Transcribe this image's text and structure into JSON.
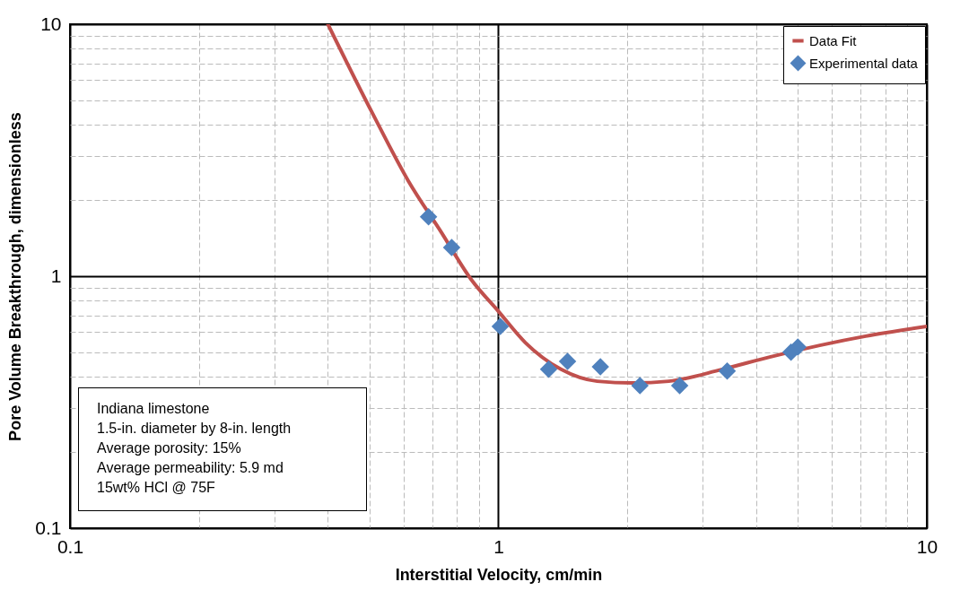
{
  "chart_data": {
    "type": "line",
    "xlabel": "Interstitial Velocity, cm/min",
    "ylabel": "Pore Volume Breakthrough, dimensionless",
    "log": "xy",
    "grid": true,
    "legend": "top right",
    "xlim": [
      0.1,
      10
    ],
    "ylim": [
      0.1,
      10
    ],
    "xticks": [
      0.1,
      {
        "value": 0.2,
        "label": null
      },
      {
        "value": 0.3,
        "label": null
      },
      {
        "value": 0.4,
        "label": null
      },
      {
        "value": 0.5,
        "label": null
      },
      {
        "value": 0.6,
        "label": null
      },
      {
        "value": 0.7,
        "label": null
      },
      {
        "value": 0.8,
        "label": null
      },
      {
        "value": 0.9,
        "label": null
      },
      1,
      {
        "value": 2,
        "label": null
      },
      {
        "value": 3,
        "label": null
      },
      {
        "value": 4,
        "label": null
      },
      {
        "value": 5,
        "label": null
      },
      {
        "value": 6,
        "label": null
      },
      {
        "value": 7,
        "label": null
      },
      {
        "value": 8,
        "label": null
      },
      {
        "value": 9,
        "label": null
      },
      10
    ],
    "yticks": [
      0.1,
      {
        "value": 0.2,
        "label": null
      },
      {
        "value": 0.3,
        "label": null
      },
      {
        "value": 0.4,
        "label": null
      },
      {
        "value": 0.5,
        "label": null
      },
      {
        "value": 0.6,
        "label": null
      },
      {
        "value": 0.7,
        "label": null
      },
      {
        "value": 0.8,
        "label": null
      },
      {
        "value": 0.9,
        "label": null
      },
      1,
      {
        "value": 2,
        "label": null
      },
      {
        "value": 3,
        "label": null
      },
      {
        "value": 4,
        "label": null
      },
      {
        "value": 5,
        "label": null
      },
      {
        "value": 6,
        "label": null
      },
      {
        "value": 7,
        "label": null
      },
      {
        "value": 8,
        "label": null
      },
      {
        "value": 9,
        "label": null
      },
      10
    ],
    "series": [
      {
        "name": "Data Fit",
        "marker": "none",
        "line_style": "solid",
        "color": "#c0504d",
        "x": [
          0.4,
          0.509,
          0.617,
          0.731,
          0.865,
          1.0,
          1.156,
          1.4,
          1.7,
          2.06,
          2.5,
          3.33,
          4.3,
          7.2,
          10
        ],
        "values": [
          10,
          4.41,
          2.38,
          1.52,
          0.968,
          0.726,
          0.545,
          0.427,
          0.383,
          0.377,
          0.383,
          0.427,
          0.478,
          0.578,
          0.632
        ]
      },
      {
        "name": "Experimental data",
        "type": "scatter",
        "marker": "diamond",
        "color": "#4f81bd",
        "x": [
          0.687,
          0.778,
          1.01,
          1.31,
          1.45,
          1.73,
          2.14,
          2.65,
          3.42,
          4.82,
          5.0
        ],
        "values": [
          1.72,
          1.3,
          0.632,
          0.427,
          0.459,
          0.437,
          0.368,
          0.368,
          0.42,
          0.499,
          0.523
        ]
      }
    ],
    "annotations": [
      "Indiana limestone",
      "1.5-in. diameter by 8-in. length",
      "Average porosity: 15%",
      "Average permeability: 5.9 md",
      "15wt% HCl @ 75F"
    ]
  }
}
